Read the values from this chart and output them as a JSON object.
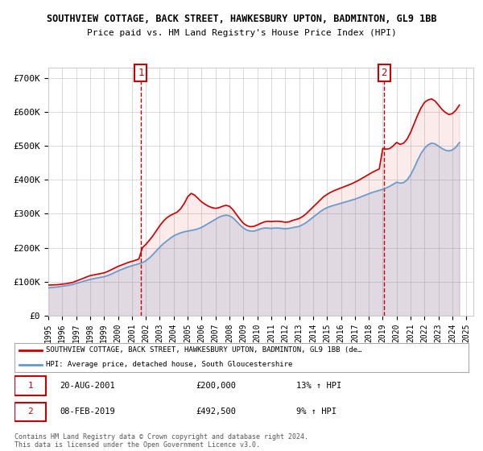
{
  "title": "SOUTHVIEW COTTAGE, BACK STREET, HAWKESBURY UPTON, BADMINTON, GL9 1BB",
  "subtitle": "Price paid vs. HM Land Registry's House Price Index (HPI)",
  "ylabel_ticks": [
    "£0",
    "£100K",
    "£200K",
    "£300K",
    "£400K",
    "£500K",
    "£600K",
    "£700K"
  ],
  "ytick_values": [
    0,
    100000,
    200000,
    300000,
    400000,
    500000,
    600000,
    700000
  ],
  "ylim": [
    0,
    730000
  ],
  "xlim_start": 1995.0,
  "xlim_end": 2025.5,
  "legend_line1": "SOUTHVIEW COTTAGE, BACK STREET, HAWKESBURY UPTON, BADMINTON, GL9 1BB (de…",
  "legend_line2": "HPI: Average price, detached house, South Gloucestershire",
  "transaction1_date": "20-AUG-2001",
  "transaction1_price": "£200,000",
  "transaction1_hpi": "13% ↑ HPI",
  "transaction1_year": 2001.64,
  "transaction1_value": 200000,
  "transaction2_date": "08-FEB-2019",
  "transaction2_price": "£492,500",
  "transaction2_hpi": "9% ↑ HPI",
  "transaction2_year": 2019.1,
  "transaction2_value": 492500,
  "footer1": "Contains HM Land Registry data © Crown copyright and database right 2024.",
  "footer2": "This data is licensed under the Open Government Licence v3.0.",
  "line_color_red": "#cc0000",
  "line_color_blue": "#6699cc",
  "background_color": "#ffffff",
  "grid_color": "#cccccc",
  "annotation_box_color": "#cc0000",
  "hpi_years": [
    1995.0,
    1995.25,
    1995.5,
    1995.75,
    1996.0,
    1996.25,
    1996.5,
    1996.75,
    1997.0,
    1997.25,
    1997.5,
    1997.75,
    1998.0,
    1998.25,
    1998.5,
    1998.75,
    1999.0,
    1999.25,
    1999.5,
    1999.75,
    2000.0,
    2000.25,
    2000.5,
    2000.75,
    2001.0,
    2001.25,
    2001.5,
    2001.75,
    2002.0,
    2002.25,
    2002.5,
    2002.75,
    2003.0,
    2003.25,
    2003.5,
    2003.75,
    2004.0,
    2004.25,
    2004.5,
    2004.75,
    2005.0,
    2005.25,
    2005.5,
    2005.75,
    2006.0,
    2006.25,
    2006.5,
    2006.75,
    2007.0,
    2007.25,
    2007.5,
    2007.75,
    2008.0,
    2008.25,
    2008.5,
    2008.75,
    2009.0,
    2009.25,
    2009.5,
    2009.75,
    2010.0,
    2010.25,
    2010.5,
    2010.75,
    2011.0,
    2011.25,
    2011.5,
    2011.75,
    2012.0,
    2012.25,
    2012.5,
    2012.75,
    2013.0,
    2013.25,
    2013.5,
    2013.75,
    2014.0,
    2014.25,
    2014.5,
    2014.75,
    2015.0,
    2015.25,
    2015.5,
    2015.75,
    2016.0,
    2016.25,
    2016.5,
    2016.75,
    2017.0,
    2017.25,
    2017.5,
    2017.75,
    2018.0,
    2018.25,
    2018.5,
    2018.75,
    2019.0,
    2019.25,
    2019.5,
    2019.75,
    2020.0,
    2020.25,
    2020.5,
    2020.75,
    2021.0,
    2021.25,
    2021.5,
    2021.75,
    2022.0,
    2022.25,
    2022.5,
    2022.75,
    2023.0,
    2023.25,
    2023.5,
    2023.75,
    2024.0,
    2024.25,
    2024.5
  ],
  "hpi_values": [
    82000,
    83000,
    84000,
    85000,
    87000,
    88000,
    90000,
    92000,
    95000,
    98000,
    101000,
    104000,
    107000,
    109000,
    111000,
    113000,
    115000,
    118000,
    122000,
    127000,
    132000,
    136000,
    140000,
    144000,
    147000,
    150000,
    153000,
    156000,
    162000,
    170000,
    180000,
    191000,
    202000,
    212000,
    220000,
    228000,
    235000,
    240000,
    244000,
    247000,
    249000,
    251000,
    253000,
    256000,
    260000,
    266000,
    272000,
    278000,
    284000,
    290000,
    294000,
    296000,
    294000,
    288000,
    278000,
    267000,
    258000,
    252000,
    249000,
    249000,
    252000,
    256000,
    258000,
    258000,
    257000,
    258000,
    258000,
    257000,
    256000,
    257000,
    259000,
    261000,
    263000,
    268000,
    274000,
    282000,
    290000,
    298000,
    306000,
    313000,
    318000,
    322000,
    325000,
    328000,
    331000,
    334000,
    337000,
    340000,
    343000,
    347000,
    351000,
    355000,
    359000,
    363000,
    366000,
    369000,
    372000,
    376000,
    381000,
    387000,
    393000,
    390000,
    392000,
    400000,
    415000,
    435000,
    458000,
    478000,
    493000,
    503000,
    508000,
    506000,
    499000,
    492000,
    487000,
    485000,
    488000,
    496000,
    510000
  ],
  "price_years": [
    1995.0,
    1995.25,
    1995.5,
    1995.75,
    1996.0,
    1996.25,
    1996.5,
    1996.75,
    1997.0,
    1997.25,
    1997.5,
    1997.75,
    1998.0,
    1998.25,
    1998.5,
    1998.75,
    1999.0,
    1999.25,
    1999.5,
    1999.75,
    2000.0,
    2000.25,
    2000.5,
    2000.75,
    2001.0,
    2001.25,
    2001.5,
    2001.75,
    2002.0,
    2002.25,
    2002.5,
    2002.75,
    2003.0,
    2003.25,
    2003.5,
    2003.75,
    2004.0,
    2004.25,
    2004.5,
    2004.75,
    2005.0,
    2005.25,
    2005.5,
    2005.75,
    2006.0,
    2006.25,
    2006.5,
    2006.75,
    2007.0,
    2007.25,
    2007.5,
    2007.75,
    2008.0,
    2008.25,
    2008.5,
    2008.75,
    2009.0,
    2009.25,
    2009.5,
    2009.75,
    2010.0,
    2010.25,
    2010.5,
    2010.75,
    2011.0,
    2011.25,
    2011.5,
    2011.75,
    2012.0,
    2012.25,
    2012.5,
    2012.75,
    2013.0,
    2013.25,
    2013.5,
    2013.75,
    2014.0,
    2014.25,
    2014.5,
    2014.75,
    2015.0,
    2015.25,
    2015.5,
    2015.75,
    2016.0,
    2016.25,
    2016.5,
    2016.75,
    2017.0,
    2017.25,
    2017.5,
    2017.75,
    2018.0,
    2018.25,
    2018.5,
    2018.75,
    2019.0,
    2019.25,
    2019.5,
    2019.75,
    2020.0,
    2020.25,
    2020.5,
    2020.75,
    2021.0,
    2021.25,
    2021.5,
    2021.75,
    2022.0,
    2022.25,
    2022.5,
    2022.75,
    2023.0,
    2023.25,
    2023.5,
    2023.75,
    2024.0,
    2024.25,
    2024.5
  ],
  "price_values": [
    90000,
    90500,
    91000,
    91500,
    93000,
    94000,
    96000,
    98000,
    102000,
    106000,
    110000,
    114000,
    118000,
    120000,
    122000,
    124000,
    126000,
    130000,
    135000,
    140000,
    145000,
    149000,
    153000,
    157000,
    160000,
    163000,
    167000,
    200000,
    210000,
    222000,
    235000,
    250000,
    265000,
    278000,
    288000,
    295000,
    300000,
    305000,
    315000,
    330000,
    350000,
    360000,
    355000,
    345000,
    335000,
    328000,
    322000,
    318000,
    316000,
    318000,
    322000,
    325000,
    322000,
    312000,
    298000,
    284000,
    272000,
    265000,
    262000,
    263000,
    267000,
    272000,
    276000,
    278000,
    277000,
    278000,
    278000,
    277000,
    275000,
    276000,
    280000,
    283000,
    286000,
    292000,
    300000,
    310000,
    320000,
    330000,
    340000,
    350000,
    357000,
    363000,
    368000,
    372000,
    376000,
    380000,
    384000,
    388000,
    393000,
    398000,
    404000,
    410000,
    416000,
    422000,
    427000,
    432000,
    492500,
    490000,
    492000,
    500000,
    510000,
    504000,
    508000,
    520000,
    540000,
    565000,
    590000,
    612000,
    628000,
    635000,
    638000,
    632000,
    620000,
    607000,
    598000,
    592000,
    595000,
    605000,
    620000
  ],
  "xtick_years": [
    1995,
    1996,
    1997,
    1998,
    1999,
    2000,
    2001,
    2002,
    2003,
    2004,
    2005,
    2006,
    2007,
    2008,
    2009,
    2010,
    2011,
    2012,
    2013,
    2014,
    2015,
    2016,
    2017,
    2018,
    2019,
    2020,
    2021,
    2022,
    2023,
    2024,
    2025
  ]
}
